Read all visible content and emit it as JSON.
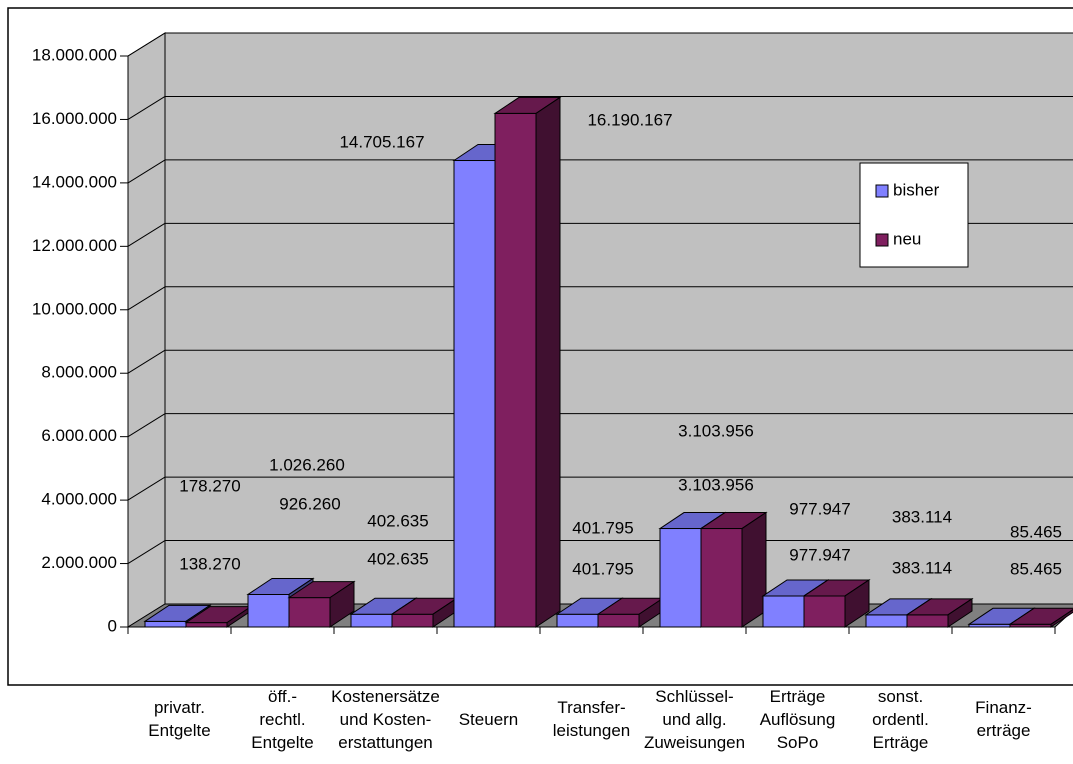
{
  "chart_data": {
    "type": "bar3d",
    "categories": [
      "privatr.\nEntgelte",
      "öff.-\nrechtl.\nEntgelte",
      "Kostenersätze\nund Kosten-\nerstattungen",
      "Steuern",
      "Transfer-\nleistungen",
      "Schlüssel-\nund allg.\nZuweisungen",
      "Erträge\nAuflösung\nSoPo",
      "sonst.\nordentl.\nErträge",
      "Finanz-\nerträge"
    ],
    "series": [
      {
        "name": "bisher",
        "color": "#8080ff",
        "values": [
          178270,
          1026260,
          402635,
          14705167,
          401795,
          3103956,
          977947,
          383114,
          85465
        ],
        "value_labels": [
          "178.270",
          "1.026.260",
          "402.635",
          "14.705.167",
          "401.795",
          "3.103.956",
          "977.947",
          "383.114",
          "85.465"
        ]
      },
      {
        "name": "neu",
        "color": "#7f1f5f",
        "values": [
          138270,
          926260,
          402635,
          16190167,
          401795,
          3103956,
          977947,
          383114,
          85465
        ],
        "value_labels": [
          "138.270",
          "926.260",
          "402.635",
          "16.190.167",
          "401.795",
          "3.103.956",
          "977.947",
          "383.114",
          "85.465"
        ]
      }
    ],
    "ylim": [
      0,
      18000000
    ],
    "yticks": [
      0,
      {
        "value": 2000000,
        "label": "2.000.000"
      },
      {
        "value": 4000000,
        "label": "4.000.000"
      },
      {
        "value": 6000000,
        "label": "6.000.000"
      },
      {
        "value": 8000000,
        "label": "8.000.000"
      },
      {
        "value": 10000000,
        "label": "10.000.000"
      },
      {
        "value": 12000000,
        "label": "12.000.000"
      },
      {
        "value": 14000000,
        "label": "14.000.000"
      },
      {
        "value": 16000000,
        "label": "16.000.000"
      },
      {
        "value": 18000000,
        "label": "18.000.000"
      }
    ],
    "grid": true,
    "legend": "right"
  }
}
